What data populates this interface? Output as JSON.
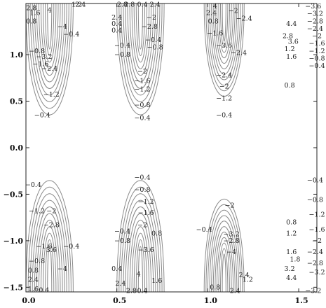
{
  "chart_data": {
    "type": "contour",
    "title": "",
    "xlabel": "",
    "ylabel": "",
    "xlim": [
      0.0,
      1.6
    ],
    "ylim": [
      -1.55,
      1.55
    ],
    "grid": false,
    "legend": "none",
    "line_color": "#8a8a8a",
    "x_ticks": [
      0.0,
      0.5,
      1.0,
      1.5
    ],
    "x_tick_labels": [
      "0.0",
      "0.5",
      "1.0",
      "1.5"
    ],
    "y_ticks": [
      1.0,
      0.5,
      0.0,
      -0.5,
      -1.0,
      -1.5
    ],
    "y_tick_labels": [
      "1.0",
      "0.5",
      "0.0",
      "−0.5",
      "−1.0",
      "−1.5"
    ],
    "lobes": [
      {
        "center_x": 0.13,
        "edge_y": 1.55,
        "direction": "down",
        "depth": 1.2,
        "half_width": 0.13
      },
      {
        "center_x": 0.63,
        "edge_y": 1.55,
        "direction": "down",
        "depth": 1.2,
        "half_width": 0.13
      },
      {
        "center_x": 1.09,
        "edge_y": 1.55,
        "direction": "down",
        "depth": 1.0,
        "half_width": 0.11
      },
      {
        "center_x": 0.13,
        "edge_y": -1.55,
        "direction": "up",
        "depth": 1.2,
        "half_width": 0.13
      },
      {
        "center_x": 0.63,
        "edge_y": -1.55,
        "direction": "up",
        "depth": 1.2,
        "half_width": 0.13
      },
      {
        "center_x": 1.09,
        "edge_y": -1.55,
        "direction": "up",
        "depth": 1.0,
        "half_width": 0.11
      }
    ],
    "contour_labels": [
      {
        "x": 0.03,
        "y": 1.5,
        "text": "2.8"
      },
      {
        "x": 0.05,
        "y": 1.45,
        "text": "1.6"
      },
      {
        "x": 0.03,
        "y": 1.36,
        "text": "0.8"
      },
      {
        "x": 0.13,
        "y": 1.48,
        "text": "4"
      },
      {
        "x": 0.2,
        "y": 1.3,
        "text": "−4"
      },
      {
        "x": 0.25,
        "y": 1.22,
        "text": "−0.4"
      },
      {
        "x": 0.06,
        "y": 1.04,
        "text": "−0.8"
      },
      {
        "x": 0.1,
        "y": 0.98,
        "text": "−3.2"
      },
      {
        "x": 0.08,
        "y": 0.9,
        "text": "−1.6"
      },
      {
        "x": 0.13,
        "y": 0.85,
        "text": "−2.4"
      },
      {
        "x": 0.14,
        "y": 0.57,
        "text": "−1.2"
      },
      {
        "x": 0.09,
        "y": 0.35,
        "text": "−0.4"
      },
      {
        "x": 0.28,
        "y": 1.54,
        "text": "1.2"
      },
      {
        "x": 0.3,
        "y": 1.54,
        "text": "2.4"
      },
      {
        "x": 0.53,
        "y": 1.54,
        "text": "2.8"
      },
      {
        "x": 0.57,
        "y": 1.54,
        "text": "2.8"
      },
      {
        "x": 0.64,
        "y": 1.54,
        "text": "0.4"
      },
      {
        "x": 0.71,
        "y": 1.54,
        "text": "2.4"
      },
      {
        "x": 0.5,
        "y": 1.4,
        "text": "2.4"
      },
      {
        "x": 0.5,
        "y": 1.33,
        "text": "0.4"
      },
      {
        "x": 0.5,
        "y": 1.26,
        "text": "0.4"
      },
      {
        "x": 0.69,
        "y": 1.4,
        "text": "−2"
      },
      {
        "x": 0.68,
        "y": 1.3,
        "text": "−2.8"
      },
      {
        "x": 0.7,
        "y": 1.16,
        "text": "−0.4"
      },
      {
        "x": 0.71,
        "y": 1.08,
        "text": "−0.8"
      },
      {
        "x": 0.53,
        "y": 1.1,
        "text": "−0.4"
      },
      {
        "x": 0.53,
        "y": 1.0,
        "text": "−0.8"
      },
      {
        "x": 0.64,
        "y": 0.82,
        "text": "−2"
      },
      {
        "x": 0.64,
        "y": 0.72,
        "text": "−1.6"
      },
      {
        "x": 0.64,
        "y": 0.63,
        "text": "−1.2"
      },
      {
        "x": 0.64,
        "y": 0.46,
        "text": "−0.8"
      },
      {
        "x": 0.64,
        "y": 0.32,
        "text": "−0.4"
      },
      {
        "x": 1.04,
        "y": 1.52,
        "text": "4"
      },
      {
        "x": 1.02,
        "y": 1.45,
        "text": "2.4"
      },
      {
        "x": 1.03,
        "y": 1.36,
        "text": "0.8"
      },
      {
        "x": 1.14,
        "y": 1.47,
        "text": "−2"
      },
      {
        "x": 1.2,
        "y": 1.39,
        "text": "−2.4"
      },
      {
        "x": 1.04,
        "y": 1.23,
        "text": "−1.6"
      },
      {
        "x": 1.09,
        "y": 1.1,
        "text": "−3.6"
      },
      {
        "x": 1.17,
        "y": 1.02,
        "text": "−2.4"
      },
      {
        "x": 1.09,
        "y": 0.78,
        "text": "−2.4"
      },
      {
        "x": 1.09,
        "y": 0.66,
        "text": "−2"
      },
      {
        "x": 1.09,
        "y": 0.53,
        "text": "−1.2"
      },
      {
        "x": 1.09,
        "y": 0.35,
        "text": "−0.4"
      },
      {
        "x": 1.46,
        "y": 1.33,
        "text": "4.4"
      },
      {
        "x": 1.44,
        "y": 1.2,
        "text": "2.8"
      },
      {
        "x": 1.47,
        "y": 1.14,
        "text": "3.6"
      },
      {
        "x": 1.45,
        "y": 1.06,
        "text": "1.2"
      },
      {
        "x": 1.46,
        "y": 0.98,
        "text": "1.6"
      },
      {
        "x": 1.45,
        "y": 0.67,
        "text": "0.8"
      },
      {
        "x": 1.58,
        "y": 1.52,
        "text": "−3.6"
      },
      {
        "x": 1.59,
        "y": 1.44,
        "text": "−3.2"
      },
      {
        "x": 1.59,
        "y": 1.36,
        "text": "−2.8"
      },
      {
        "x": 1.59,
        "y": 1.28,
        "text": "−2.4"
      },
      {
        "x": 1.6,
        "y": 1.2,
        "text": "−2"
      },
      {
        "x": 1.6,
        "y": 1.12,
        "text": "−1.6"
      },
      {
        "x": 1.6,
        "y": 1.04,
        "text": "−1.2"
      },
      {
        "x": 1.6,
        "y": 0.96,
        "text": "−0.8"
      },
      {
        "x": 1.6,
        "y": 0.88,
        "text": "−0.4"
      },
      {
        "x": 0.04,
        "y": -0.4,
        "text": "−0.4"
      },
      {
        "x": 0.06,
        "y": -0.68,
        "text": "−1.2"
      },
      {
        "x": 0.14,
        "y": -0.68,
        "text": "−2"
      },
      {
        "x": 0.14,
        "y": -0.83,
        "text": "−2.8"
      },
      {
        "x": 0.1,
        "y": -1.06,
        "text": "−1.6"
      },
      {
        "x": 0.06,
        "y": -1.22,
        "text": "−0.8"
      },
      {
        "x": 0.14,
        "y": -1.1,
        "text": "3.6"
      },
      {
        "x": 0.25,
        "y": -1.06,
        "text": "−0.4"
      },
      {
        "x": 0.04,
        "y": -1.32,
        "text": "0.8"
      },
      {
        "x": 0.04,
        "y": -1.42,
        "text": "2.4"
      },
      {
        "x": 0.2,
        "y": -1.3,
        "text": "−4"
      },
      {
        "x": 0.04,
        "y": -1.52,
        "text": "1.6"
      },
      {
        "x": 0.1,
        "y": -1.53,
        "text": "0.4"
      },
      {
        "x": 0.64,
        "y": -0.32,
        "text": "−0.4"
      },
      {
        "x": 0.64,
        "y": -0.45,
        "text": "−0.8"
      },
      {
        "x": 0.66,
        "y": -0.58,
        "text": "−1.2"
      },
      {
        "x": 0.66,
        "y": -0.7,
        "text": "−1.6"
      },
      {
        "x": 0.64,
        "y": -0.83,
        "text": "−2"
      },
      {
        "x": 0.53,
        "y": -0.9,
        "text": "−0.4"
      },
      {
        "x": 0.53,
        "y": -1.0,
        "text": "−0.8"
      },
      {
        "x": 0.72,
        "y": -0.92,
        "text": "0.8"
      },
      {
        "x": 0.66,
        "y": -1.1,
        "text": "−3.6"
      },
      {
        "x": 0.62,
        "y": -1.36,
        "text": "4"
      },
      {
        "x": 0.5,
        "y": -1.3,
        "text": "0.4"
      },
      {
        "x": 0.52,
        "y": -1.46,
        "text": "2.4"
      },
      {
        "x": 0.72,
        "y": -1.43,
        "text": "1.6"
      },
      {
        "x": 0.58,
        "y": -1.54,
        "text": "2.8"
      },
      {
        "x": 0.64,
        "y": -1.54,
        "text": "0.4"
      },
      {
        "x": 1.12,
        "y": -0.62,
        "text": "−2"
      },
      {
        "x": 0.98,
        "y": -0.88,
        "text": "−0.4"
      },
      {
        "x": 1.13,
        "y": -0.93,
        "text": "−3.2"
      },
      {
        "x": 1.13,
        "y": -1.0,
        "text": "−2.8"
      },
      {
        "x": 1.13,
        "y": -1.12,
        "text": "−4"
      },
      {
        "x": 1.2,
        "y": -1.37,
        "text": "2.4"
      },
      {
        "x": 1.22,
        "y": -1.42,
        "text": "1.2"
      },
      {
        "x": 1.04,
        "y": -1.5,
        "text": "0.8"
      },
      {
        "x": 1.15,
        "y": -1.54,
        "text": "2.4"
      },
      {
        "x": 1.46,
        "y": -0.8,
        "text": "0.8"
      },
      {
        "x": 1.46,
        "y": -0.92,
        "text": "1.2"
      },
      {
        "x": 1.46,
        "y": -1.12,
        "text": "1.6"
      },
      {
        "x": 1.48,
        "y": -1.2,
        "text": "1.8"
      },
      {
        "x": 1.45,
        "y": -1.3,
        "text": "3.2"
      },
      {
        "x": 1.46,
        "y": -1.4,
        "text": "4.4"
      },
      {
        "x": 1.59,
        "y": -0.35,
        "text": "−0.4"
      },
      {
        "x": 1.59,
        "y": -0.56,
        "text": "−0.8"
      },
      {
        "x": 1.6,
        "y": -0.72,
        "text": "−1.2"
      },
      {
        "x": 1.6,
        "y": -0.88,
        "text": "−1.6"
      },
      {
        "x": 1.6,
        "y": -1.0,
        "text": "−2"
      },
      {
        "x": 1.59,
        "y": -1.12,
        "text": "−2.4"
      },
      {
        "x": 1.59,
        "y": -1.24,
        "text": "−2.8"
      },
      {
        "x": 1.6,
        "y": -1.34,
        "text": "−3.2"
      },
      {
        "x": 1.58,
        "y": -1.54,
        "text": "−3.2"
      }
    ]
  }
}
